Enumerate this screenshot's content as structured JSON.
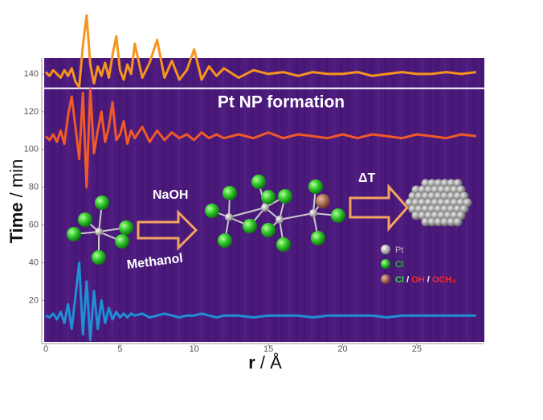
{
  "chart_data": {
    "type": "line",
    "y_label": {
      "text": "Time",
      "unit": "/ min"
    },
    "x_label": {
      "text": "r",
      "unit": "/ Å"
    },
    "annotations": {
      "formation": "Pt NP formation",
      "reagent1": "NaOH",
      "reagent2": "Methanol",
      "heat": "ΔT"
    },
    "legend": {
      "pt": "Pt",
      "cl": "Cl",
      "mix": [
        "Cl",
        "/",
        "OH",
        "/",
        "OCH₃"
      ]
    },
    "xlim": [
      0,
      29.5
    ],
    "ylim": [
      -2,
      148.5
    ],
    "xticks": [
      0,
      5,
      10,
      15,
      20,
      25
    ],
    "yticks": [
      20,
      40,
      60,
      80,
      100,
      120,
      140
    ],
    "separator_y": 132.4,
    "x": [
      0,
      0.25,
      0.5,
      0.75,
      1,
      1.25,
      1.5,
      1.75,
      2,
      2.25,
      2.5,
      2.75,
      3,
      3.25,
      3.5,
      3.75,
      4,
      4.25,
      4.5,
      4.75,
      5,
      5.25,
      5.5,
      5.75,
      6,
      6.5,
      7,
      7.5,
      8,
      8.5,
      9,
      9.5,
      10,
      10.5,
      11,
      11.5,
      12,
      13,
      14,
      15,
      16,
      17,
      18,
      19,
      20,
      21,
      22,
      23,
      24,
      25,
      26,
      27,
      28,
      29
    ],
    "series": [
      {
        "color": "#f7941d",
        "values": [
          141,
          139,
          142,
          140,
          138,
          142,
          139,
          143,
          136,
          133,
          155,
          171,
          145,
          135,
          144,
          139,
          146,
          138,
          150,
          160,
          142,
          137,
          145,
          140,
          156,
          138,
          146,
          158,
          138,
          147,
          137,
          142,
          153,
          137,
          144,
          139,
          143,
          138,
          142,
          140,
          141,
          139,
          141,
          140,
          140,
          141,
          139,
          140,
          141,
          140,
          140,
          141,
          140,
          141
        ]
      },
      {
        "color": "#f05a28",
        "values": [
          107,
          105,
          108,
          104,
          110,
          103,
          118,
          128,
          112,
          95,
          130,
          80,
          132,
          98,
          110,
          120,
          104,
          112,
          125,
          105,
          108,
          115,
          103,
          110,
          106,
          112,
          104,
          110,
          105,
          109,
          106,
          108,
          105,
          109,
          106,
          108,
          106,
          108,
          106,
          109,
          106,
          108,
          107,
          106,
          108,
          106,
          108,
          107,
          106,
          108,
          107,
          106,
          108,
          107
        ]
      },
      {
        "color": "#1f8fd6",
        "values": [
          12,
          11,
          13,
          10,
          14,
          8,
          18,
          5,
          22,
          40,
          2,
          30,
          -1,
          25,
          5,
          20,
          8,
          16,
          10,
          14,
          11,
          13,
          11,
          13,
          12,
          13,
          11,
          12,
          13,
          12,
          11,
          12,
          12,
          13,
          12,
          11,
          12,
          12,
          11,
          12,
          12,
          12,
          11,
          12,
          12,
          12,
          12,
          11,
          12,
          12,
          12,
          12,
          12,
          12
        ]
      }
    ]
  }
}
